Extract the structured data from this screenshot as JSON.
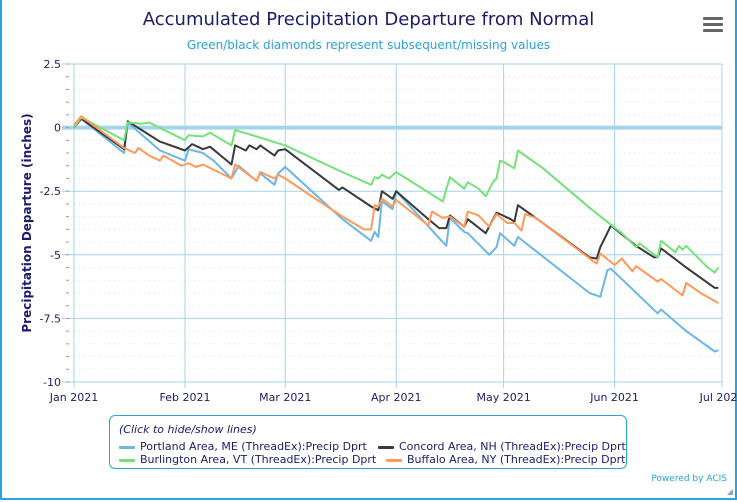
{
  "title": "Accumulated Precipitation Departure from Normal",
  "subtitle": "Green/black diamonds represent subsequent/missing values",
  "menu_icon": "hamburger-menu-icon",
  "legend": {
    "hint": "(Click to hide/show lines)"
  },
  "powered_by": "Powered by ACIS",
  "chart_data": {
    "type": "line",
    "title": "Accumulated Precipitation Departure from Normal",
    "subtitle": "Green/black diamonds represent subsequent/missing values",
    "xlabel": "",
    "ylabel": "Precipitation Departure (inches)",
    "xlim": [
      "2021-01-01",
      "2021-07-01"
    ],
    "ylim": [
      -10,
      2.5
    ],
    "y_ticks": [
      "2.5",
      "0",
      "-2.5",
      "-5",
      "-7.5",
      "-10"
    ],
    "y_tick_values": [
      2.5,
      0,
      -2.5,
      -5,
      -7.5,
      -10
    ],
    "x_ticks": [
      "Jan 2021",
      "Feb 2021",
      "Mar 2021",
      "Apr 2021",
      "May 2021",
      "Jun 2021",
      "Jul 2021"
    ],
    "x_tick_dates": [
      "2021-01-01",
      "2021-02-01",
      "2021-03-01",
      "2021-04-01",
      "2021-05-01",
      "2021-06-01",
      "2021-07-01"
    ],
    "grid": true,
    "legend_position": "bottom",
    "series": [
      {
        "name": "Portland Area, ME (ThreadEx):Precip Dprt",
        "color": "#6cb6e8",
        "points": [
          [
            "2021-01-01",
            0
          ],
          [
            "2021-01-03",
            0.35
          ],
          [
            "2021-01-15",
            -1.0
          ],
          [
            "2021-01-16",
            0.2
          ],
          [
            "2021-01-25",
            -0.9
          ],
          [
            "2021-02-01",
            -1.3
          ],
          [
            "2021-02-02",
            -0.85
          ],
          [
            "2021-02-06",
            -1.0
          ],
          [
            "2021-02-09",
            -1.3
          ],
          [
            "2021-02-14",
            -2.0
          ],
          [
            "2021-02-16",
            -1.5
          ],
          [
            "2021-02-21",
            -2.1
          ],
          [
            "2021-02-22",
            -1.8
          ],
          [
            "2021-02-26",
            -2.25
          ],
          [
            "2021-02-27",
            -1.8
          ],
          [
            "2021-03-01",
            -1.55
          ],
          [
            "2021-03-17",
            -3.6
          ],
          [
            "2021-03-25",
            -4.45
          ],
          [
            "2021-03-26",
            -4.1
          ],
          [
            "2021-03-27",
            -4.3
          ],
          [
            "2021-03-28",
            -2.9
          ],
          [
            "2021-03-31",
            -3.2
          ],
          [
            "2021-04-01",
            -2.5
          ],
          [
            "2021-04-15",
            -4.65
          ],
          [
            "2021-04-16",
            -3.55
          ],
          [
            "2021-04-20",
            -4.1
          ],
          [
            "2021-04-21",
            -4.15
          ],
          [
            "2021-04-27",
            -5.0
          ],
          [
            "2021-04-29",
            -4.7
          ],
          [
            "2021-04-30",
            -4.15
          ],
          [
            "2021-05-04",
            -4.65
          ],
          [
            "2021-05-05",
            -4.3
          ],
          [
            "2021-05-25",
            -6.5
          ],
          [
            "2021-05-28",
            -6.65
          ],
          [
            "2021-05-30",
            -5.6
          ],
          [
            "2021-05-31",
            -5.55
          ],
          [
            "2021-06-13",
            -7.3
          ],
          [
            "2021-06-14",
            -7.15
          ],
          [
            "2021-06-21",
            -8.0
          ],
          [
            "2021-06-29",
            -8.8
          ],
          [
            "2021-06-30",
            -8.75
          ]
        ]
      },
      {
        "name": "Concord Area, NH (ThreadEx):Precip Dprt",
        "color": "#3a3a3a",
        "points": [
          [
            "2021-01-01",
            0
          ],
          [
            "2021-01-03",
            0.35
          ],
          [
            "2021-01-15",
            -0.85
          ],
          [
            "2021-01-16",
            0.25
          ],
          [
            "2021-01-25",
            -0.55
          ],
          [
            "2021-02-01",
            -0.9
          ],
          [
            "2021-02-03",
            -0.65
          ],
          [
            "2021-02-06",
            -0.85
          ],
          [
            "2021-02-08",
            -0.75
          ],
          [
            "2021-02-14",
            -1.45
          ],
          [
            "2021-02-15",
            -0.7
          ],
          [
            "2021-02-18",
            -0.9
          ],
          [
            "2021-02-19",
            -0.7
          ],
          [
            "2021-02-21",
            -0.85
          ],
          [
            "2021-02-22",
            -0.7
          ],
          [
            "2021-02-26",
            -1.1
          ],
          [
            "2021-02-27",
            -0.9
          ],
          [
            "2021-03-01",
            -0.85
          ],
          [
            "2021-03-16",
            -2.45
          ],
          [
            "2021-03-17",
            -2.35
          ],
          [
            "2021-03-25",
            -3.1
          ],
          [
            "2021-03-27",
            -3.25
          ],
          [
            "2021-03-28",
            -2.5
          ],
          [
            "2021-03-31",
            -2.8
          ],
          [
            "2021-04-01",
            -2.5
          ],
          [
            "2021-04-10",
            -3.6
          ],
          [
            "2021-04-13",
            -3.95
          ],
          [
            "2021-04-15",
            -3.95
          ],
          [
            "2021-04-16",
            -3.45
          ],
          [
            "2021-04-20",
            -3.9
          ],
          [
            "2021-04-21",
            -3.6
          ],
          [
            "2021-04-26",
            -4.15
          ],
          [
            "2021-04-29",
            -3.35
          ],
          [
            "2021-04-30",
            -3.4
          ],
          [
            "2021-05-03",
            -3.6
          ],
          [
            "2021-05-04",
            -3.7
          ],
          [
            "2021-05-05",
            -3.05
          ],
          [
            "2021-05-10",
            -3.55
          ],
          [
            "2021-05-25",
            -5.1
          ],
          [
            "2021-05-27",
            -5.15
          ],
          [
            "2021-05-28",
            -4.7
          ],
          [
            "2021-05-31",
            -3.85
          ],
          [
            "2021-06-03",
            -4.2
          ],
          [
            "2021-06-07",
            -4.65
          ],
          [
            "2021-06-12",
            -5.1
          ],
          [
            "2021-06-13",
            -5.1
          ],
          [
            "2021-06-14",
            -4.75
          ],
          [
            "2021-06-21",
            -5.5
          ],
          [
            "2021-06-29",
            -6.3
          ],
          [
            "2021-06-30",
            -6.3
          ]
        ]
      },
      {
        "name": "Burlington Area, VT (ThreadEx):Precip Dprt",
        "color": "#77e07a",
        "points": [
          [
            "2021-01-01",
            0
          ],
          [
            "2021-01-03",
            0.4
          ],
          [
            "2021-01-15",
            -0.5
          ],
          [
            "2021-01-16",
            0.2
          ],
          [
            "2021-01-20",
            0.15
          ],
          [
            "2021-01-22",
            0.2
          ],
          [
            "2021-02-01",
            -0.5
          ],
          [
            "2021-02-02",
            -0.3
          ],
          [
            "2021-02-06",
            -0.35
          ],
          [
            "2021-02-08",
            -0.2
          ],
          [
            "2021-02-14",
            -0.7
          ],
          [
            "2021-02-15",
            -0.1
          ],
          [
            "2021-02-21",
            -0.35
          ],
          [
            "2021-03-01",
            -0.7
          ],
          [
            "2021-03-04",
            -0.9
          ],
          [
            "2021-03-17",
            -1.75
          ],
          [
            "2021-03-25",
            -2.25
          ],
          [
            "2021-03-26",
            -1.95
          ],
          [
            "2021-03-27",
            -2.0
          ],
          [
            "2021-03-28",
            -1.85
          ],
          [
            "2021-03-30",
            -2.0
          ],
          [
            "2021-04-01",
            -1.75
          ],
          [
            "2021-04-14",
            -2.9
          ],
          [
            "2021-04-16",
            -1.95
          ],
          [
            "2021-04-20",
            -2.4
          ],
          [
            "2021-04-21",
            -2.15
          ],
          [
            "2021-04-24",
            -2.4
          ],
          [
            "2021-04-26",
            -2.7
          ],
          [
            "2021-04-28",
            -2.15
          ],
          [
            "2021-04-29",
            -2.0
          ],
          [
            "2021-04-30",
            -1.3
          ],
          [
            "2021-05-01",
            -1.35
          ],
          [
            "2021-05-04",
            -1.6
          ],
          [
            "2021-05-05",
            -0.9
          ],
          [
            "2021-05-12",
            -1.6
          ],
          [
            "2021-05-25",
            -3.15
          ],
          [
            "2021-05-29",
            -3.6
          ],
          [
            "2021-06-03",
            -4.15
          ],
          [
            "2021-06-07",
            -4.7
          ],
          [
            "2021-06-08",
            -4.55
          ],
          [
            "2021-06-13",
            -5.1
          ],
          [
            "2021-06-14",
            -4.45
          ],
          [
            "2021-06-18",
            -4.9
          ],
          [
            "2021-06-19",
            -4.65
          ],
          [
            "2021-06-20",
            -4.8
          ],
          [
            "2021-06-21",
            -4.65
          ],
          [
            "2021-06-27",
            -5.5
          ],
          [
            "2021-06-29",
            -5.7
          ],
          [
            "2021-06-30",
            -5.5
          ]
        ]
      },
      {
        "name": "Buffalo Area, NY (ThreadEx):Precip Dprt",
        "color": "#ff9a5a",
        "points": [
          [
            "2021-01-01",
            0.1
          ],
          [
            "2021-01-03",
            0.45
          ],
          [
            "2021-01-15",
            -0.8
          ],
          [
            "2021-01-18",
            -1.0
          ],
          [
            "2021-01-19",
            -0.8
          ],
          [
            "2021-01-22",
            -1.1
          ],
          [
            "2021-01-25",
            -1.3
          ],
          [
            "2021-01-26",
            -1.1
          ],
          [
            "2021-01-31",
            -1.5
          ],
          [
            "2021-02-02",
            -1.4
          ],
          [
            "2021-02-04",
            -1.55
          ],
          [
            "2021-02-06",
            -1.45
          ],
          [
            "2021-02-14",
            -2.0
          ],
          [
            "2021-02-15",
            -1.45
          ],
          [
            "2021-02-21",
            -2.1
          ],
          [
            "2021-02-22",
            -1.75
          ],
          [
            "2021-02-26",
            -2.0
          ],
          [
            "2021-02-27",
            -1.85
          ],
          [
            "2021-03-01",
            -2.0
          ],
          [
            "2021-03-10",
            -2.85
          ],
          [
            "2021-03-17",
            -3.5
          ],
          [
            "2021-03-23",
            -4.0
          ],
          [
            "2021-03-25",
            -4.0
          ],
          [
            "2021-03-26",
            -3.05
          ],
          [
            "2021-03-27",
            -3.1
          ],
          [
            "2021-03-28",
            -2.8
          ],
          [
            "2021-03-31",
            -3.1
          ],
          [
            "2021-04-01",
            -2.85
          ],
          [
            "2021-04-10",
            -3.85
          ],
          [
            "2021-04-11",
            -3.3
          ],
          [
            "2021-04-14",
            -3.55
          ],
          [
            "2021-04-16",
            -3.5
          ],
          [
            "2021-04-20",
            -3.9
          ],
          [
            "2021-04-21",
            -3.3
          ],
          [
            "2021-04-24",
            -3.45
          ],
          [
            "2021-04-27",
            -3.9
          ],
          [
            "2021-04-29",
            -3.4
          ],
          [
            "2021-05-02",
            -3.75
          ],
          [
            "2021-05-04",
            -3.75
          ],
          [
            "2021-05-06",
            -4.05
          ],
          [
            "2021-05-07",
            -3.4
          ],
          [
            "2021-05-10",
            -3.55
          ],
          [
            "2021-05-27",
            -5.35
          ],
          [
            "2021-05-28",
            -4.95
          ],
          [
            "2021-06-01",
            -5.4
          ],
          [
            "2021-06-03",
            -5.15
          ],
          [
            "2021-06-06",
            -5.65
          ],
          [
            "2021-06-07",
            -5.45
          ],
          [
            "2021-06-13",
            -6.05
          ],
          [
            "2021-06-14",
            -5.95
          ],
          [
            "2021-06-20",
            -6.6
          ],
          [
            "2021-06-21",
            -6.1
          ],
          [
            "2021-06-25",
            -6.5
          ],
          [
            "2021-06-30",
            -6.9
          ]
        ]
      }
    ]
  }
}
